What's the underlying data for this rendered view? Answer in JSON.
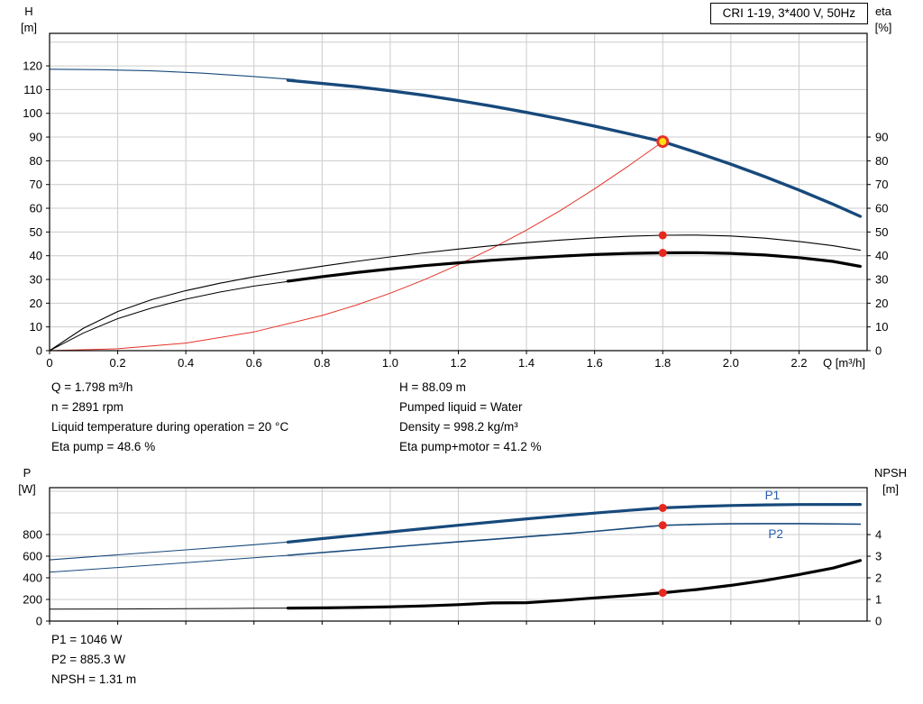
{
  "title_box": "CRI 1-19, 3*400 V, 50Hz",
  "info_left": [
    "Q = 1.798 m³/h",
    "n = 2891 rpm",
    "Liquid temperature during operation = 20 °C",
    "Eta pump = 48.6 %"
  ],
  "info_right": [
    "H = 88.09 m",
    "Pumped liquid = Water",
    "Density = 998.2 kg/m³",
    "Eta pump+motor = 41.2 %"
  ],
  "footer_lines": [
    "P1 = 1046 W",
    "P2 = 885.3 W",
    "NPSH = 1.31 m"
  ],
  "colors": {
    "grid": "#cccccc",
    "frame": "#000000",
    "curve_blue": "#17497b",
    "curve_black": "#000000",
    "curve_red": "#e63329",
    "dot_red": "#e8281e",
    "duty_yellow": "#ffe014",
    "label_blue": "#2a5caa"
  },
  "chart_data": [
    {
      "name": "qh-eta-chart",
      "type": "line",
      "title": "CRI 1-19, 3*400 V, 50Hz",
      "x_label": "Q [m³/h]",
      "x_range": [
        0,
        2.4
      ],
      "x_ticks": [
        0,
        0.2,
        0.4,
        0.6,
        0.8,
        1.0,
        1.2,
        1.4,
        1.6,
        1.8,
        2.0,
        2.2
      ],
      "x_tick_labels": [
        "0",
        "0.2",
        "0.4",
        "0.6",
        "0.8",
        "1.0",
        "1.2",
        "1.4",
        "1.6",
        "1.8",
        "2.0",
        "2.2"
      ],
      "y_left": {
        "title": [
          "H",
          "[m]"
        ],
        "range": [
          0,
          133.7
        ],
        "ticks": [
          0,
          10,
          20,
          30,
          40,
          50,
          60,
          70,
          80,
          90,
          100,
          110,
          120
        ],
        "grid": [
          10,
          20,
          30,
          40,
          50,
          60,
          70,
          80,
          90,
          100,
          110,
          120,
          130
        ]
      },
      "y_right": {
        "title": [
          "eta",
          "[%]"
        ],
        "range": [
          0,
          133.7
        ],
        "ticks": [
          0,
          10,
          20,
          30,
          40,
          50,
          60,
          70,
          80,
          90
        ]
      },
      "series": [
        {
          "name": "h-curve-lowflow",
          "axis": "left",
          "color": "#17497b",
          "width": 1.1,
          "points": [
            [
              0,
              118.6
            ],
            [
              0.15,
              118.4
            ],
            [
              0.3,
              117.9
            ],
            [
              0.45,
              116.9
            ],
            [
              0.6,
              115.5
            ],
            [
              0.72,
              114.2
            ]
          ]
        },
        {
          "name": "h-curve",
          "axis": "left",
          "color": "#17497b",
          "width": 3.4,
          "points": [
            [
              0.7,
              113.9
            ],
            [
              0.8,
              112.6
            ],
            [
              0.9,
              111.2
            ],
            [
              1.0,
              109.5
            ],
            [
              1.1,
              107.6
            ],
            [
              1.2,
              105.4
            ],
            [
              1.3,
              103.0
            ],
            [
              1.4,
              100.4
            ],
            [
              1.5,
              97.6
            ],
            [
              1.6,
              94.6
            ],
            [
              1.7,
              91.4
            ],
            [
              1.8,
              88.1
            ],
            [
              1.9,
              83.5
            ],
            [
              2.0,
              78.6
            ],
            [
              2.1,
              73.3
            ],
            [
              2.2,
              67.7
            ],
            [
              2.3,
              61.7
            ],
            [
              2.38,
              56.6
            ]
          ]
        },
        {
          "name": "system-curve",
          "axis": "left",
          "color": "#e63329",
          "width": 1,
          "points": [
            [
              0,
              0
            ],
            [
              0.2,
              0.8
            ],
            [
              0.4,
              3.2
            ],
            [
              0.6,
              7.9
            ],
            [
              0.8,
              14.8
            ],
            [
              0.9,
              19.2
            ],
            [
              1.0,
              24.2
            ],
            [
              1.1,
              29.9
            ],
            [
              1.2,
              36.2
            ],
            [
              1.3,
              43.2
            ],
            [
              1.4,
              50.8
            ],
            [
              1.5,
              59.1
            ],
            [
              1.6,
              68.2
            ],
            [
              1.7,
              77.9
            ],
            [
              1.8,
              88.1
            ]
          ]
        },
        {
          "name": "eta-pump-curve",
          "axis": "left",
          "color": "#000000",
          "width": 1.1,
          "points": [
            [
              0,
              0
            ],
            [
              0.1,
              9.5
            ],
            [
              0.2,
              16.5
            ],
            [
              0.3,
              21.5
            ],
            [
              0.4,
              25.3
            ],
            [
              0.5,
              28.4
            ],
            [
              0.6,
              31.1
            ],
            [
              0.7,
              33.4
            ],
            [
              0.8,
              35.6
            ],
            [
              0.9,
              37.6
            ],
            [
              1.0,
              39.5
            ],
            [
              1.1,
              41.2
            ],
            [
              1.2,
              42.8
            ],
            [
              1.3,
              44.2
            ],
            [
              1.4,
              45.5
            ],
            [
              1.5,
              46.6
            ],
            [
              1.6,
              47.5
            ],
            [
              1.7,
              48.2
            ],
            [
              1.8,
              48.6
            ],
            [
              1.9,
              48.7
            ],
            [
              2.0,
              48.3
            ],
            [
              2.1,
              47.4
            ],
            [
              2.2,
              46.0
            ],
            [
              2.3,
              44.2
            ],
            [
              2.38,
              42.3
            ]
          ]
        },
        {
          "name": "eta-pump-motor-lowflow",
          "axis": "left",
          "color": "#000000",
          "width": 1,
          "points": [
            [
              0,
              0
            ],
            [
              0.1,
              7.5
            ],
            [
              0.2,
              13.5
            ],
            [
              0.3,
              18
            ],
            [
              0.4,
              21.7
            ],
            [
              0.5,
              24.7
            ],
            [
              0.6,
              27.2
            ],
            [
              0.72,
              29.5
            ]
          ]
        },
        {
          "name": "eta-pump-motor-curve",
          "axis": "left",
          "color": "#000000",
          "width": 3.2,
          "points": [
            [
              0.7,
              29.3
            ],
            [
              0.8,
              31.2
            ],
            [
              0.9,
              32.9
            ],
            [
              1.0,
              34.4
            ],
            [
              1.1,
              35.8
            ],
            [
              1.2,
              37.0
            ],
            [
              1.3,
              38.1
            ],
            [
              1.4,
              39.0
            ],
            [
              1.5,
              39.8
            ],
            [
              1.6,
              40.5
            ],
            [
              1.7,
              41.0
            ],
            [
              1.8,
              41.2
            ],
            [
              1.9,
              41.3
            ],
            [
              2.0,
              41.0
            ],
            [
              2.1,
              40.3
            ],
            [
              2.2,
              39.2
            ],
            [
              2.3,
              37.6
            ],
            [
              2.38,
              35.5
            ]
          ]
        }
      ],
      "markers": [
        {
          "name": "duty-point",
          "x": 1.8,
          "y": 88.09,
          "axis": "left",
          "r": 5.5,
          "fill": "#ffe014",
          "stroke": "#e63329",
          "stroke_width": 3,
          "interactable": true
        },
        {
          "name": "eta-pump-point",
          "x": 1.8,
          "y": 48.6,
          "axis": "left",
          "r": 4.5,
          "fill": "#e8281e"
        },
        {
          "name": "eta-pump-motor-point",
          "x": 1.8,
          "y": 41.2,
          "axis": "left",
          "r": 4.5,
          "fill": "#e8281e"
        }
      ],
      "annotations": []
    },
    {
      "name": "power-npsh-chart",
      "type": "line",
      "x_range": [
        0,
        2.4
      ],
      "x_ticks": [
        0,
        0.2,
        0.4,
        0.6,
        0.8,
        1.0,
        1.2,
        1.4,
        1.6,
        1.8,
        2.0,
        2.2
      ],
      "y_left": {
        "title": [
          "P",
          "[W]"
        ],
        "range": [
          0,
          1233
        ],
        "ticks": [
          0,
          200,
          400,
          600,
          800
        ],
        "grid": [
          200,
          400,
          600,
          800,
          1000,
          1200
        ]
      },
      "y_right": {
        "title": [
          "NPSH",
          "[m]"
        ],
        "range": [
          0,
          6.17
        ],
        "ticks": [
          0,
          1,
          2,
          3,
          4
        ]
      },
      "series": [
        {
          "name": "p1-curve-lowflow",
          "axis": "left",
          "color": "#17497b",
          "width": 1.1,
          "points": [
            [
              0,
              566
            ],
            [
              0.2,
              612
            ],
            [
              0.4,
              658
            ],
            [
              0.6,
              706
            ],
            [
              0.72,
              736
            ]
          ]
        },
        {
          "name": "p1-curve",
          "axis": "left",
          "color": "#17497b",
          "width": 3.2,
          "points": [
            [
              0.7,
              730
            ],
            [
              0.8,
              762
            ],
            [
              0.9,
              793
            ],
            [
              1.0,
              824
            ],
            [
              1.1,
              855
            ],
            [
              1.2,
              886
            ],
            [
              1.3,
              916
            ],
            [
              1.4,
              945
            ],
            [
              1.5,
              972
            ],
            [
              1.6,
              998
            ],
            [
              1.7,
              1023
            ],
            [
              1.8,
              1046
            ],
            [
              1.9,
              1059
            ],
            [
              2.0,
              1068
            ],
            [
              2.1,
              1074
            ],
            [
              2.2,
              1077
            ],
            [
              2.38,
              1078
            ]
          ]
        },
        {
          "name": "p2-curve-lowflow",
          "axis": "left",
          "color": "#17497b",
          "width": 1,
          "points": [
            [
              0,
              452
            ],
            [
              0.2,
              495
            ],
            [
              0.4,
              540
            ],
            [
              0.6,
              586
            ],
            [
              0.72,
              612
            ]
          ]
        },
        {
          "name": "p2-curve",
          "axis": "left",
          "color": "#17497b",
          "width": 1.6,
          "points": [
            [
              0.7,
              608
            ],
            [
              0.8,
              633
            ],
            [
              0.9,
              658
            ],
            [
              1.0,
              683
            ],
            [
              1.1,
              708
            ],
            [
              1.2,
              732
            ],
            [
              1.3,
              756
            ],
            [
              1.4,
              780
            ],
            [
              1.5,
              803
            ],
            [
              1.6,
              829
            ],
            [
              1.7,
              857
            ],
            [
              1.8,
              885
            ],
            [
              1.9,
              894
            ],
            [
              2.0,
              899
            ],
            [
              2.1,
              901
            ],
            [
              2.2,
              901
            ],
            [
              2.38,
              896
            ]
          ]
        },
        {
          "name": "npsh-curve-lowflow",
          "axis": "right",
          "color": "#000000",
          "width": 1,
          "points": [
            [
              0,
              0.55
            ],
            [
              0.2,
              0.56
            ],
            [
              0.4,
              0.57
            ],
            [
              0.6,
              0.59
            ],
            [
              0.72,
              0.6
            ]
          ]
        },
        {
          "name": "npsh-curve",
          "axis": "right",
          "color": "#000000",
          "width": 3.2,
          "points": [
            [
              0.7,
              0.6
            ],
            [
              0.8,
              0.61
            ],
            [
              0.9,
              0.63
            ],
            [
              1.0,
              0.66
            ],
            [
              1.1,
              0.7
            ],
            [
              1.2,
              0.76
            ],
            [
              1.3,
              0.84
            ],
            [
              1.4,
              0.85
            ],
            [
              1.5,
              0.95
            ],
            [
              1.6,
              1.07
            ],
            [
              1.7,
              1.18
            ],
            [
              1.8,
              1.31
            ],
            [
              1.9,
              1.46
            ],
            [
              2.0,
              1.65
            ],
            [
              2.1,
              1.88
            ],
            [
              2.2,
              2.15
            ],
            [
              2.3,
              2.45
            ],
            [
              2.38,
              2.8
            ]
          ]
        }
      ],
      "markers": [
        {
          "name": "p1-point",
          "x": 1.8,
          "y": 1046,
          "axis": "left",
          "r": 4.5,
          "fill": "#e8281e"
        },
        {
          "name": "p2-point",
          "x": 1.8,
          "y": 885.3,
          "axis": "left",
          "r": 4.5,
          "fill": "#e8281e"
        },
        {
          "name": "npsh-point",
          "x": 1.8,
          "y": 1.31,
          "axis": "right",
          "r": 4.5,
          "fill": "#e8281e"
        }
      ],
      "annotations": [
        {
          "name": "p1-label",
          "text": "P1",
          "x": 2.1,
          "y": 1125,
          "axis": "left",
          "color": "#2a5caa"
        },
        {
          "name": "p2-label",
          "text": "P2",
          "x": 2.11,
          "y": 765,
          "axis": "left",
          "color": "#2a5caa"
        }
      ]
    }
  ]
}
